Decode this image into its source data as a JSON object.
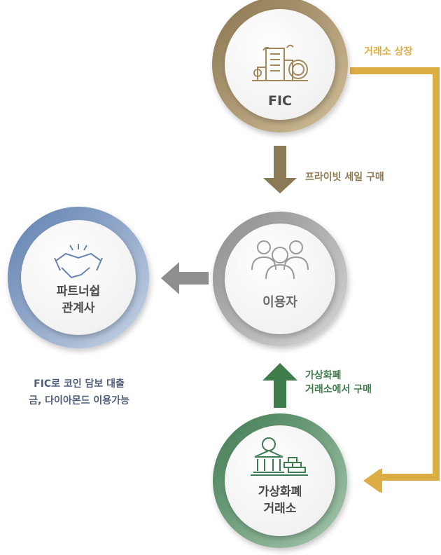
{
  "nodes": {
    "fic": {
      "label": "FIC",
      "ring_from": "#8a7550",
      "ring_to": "#d2c09a"
    },
    "user": {
      "label": "이용자",
      "ring_from": "#8c8c8c",
      "ring_to": "#d7d7d7"
    },
    "partner": {
      "line1": "파트너쉽",
      "line2": "관계사",
      "ring_from": "#5f7fb0",
      "ring_to": "#c9d5e6"
    },
    "exchange": {
      "line1": "가상화폐",
      "line2": "거래소",
      "ring_from": "#3f7a52",
      "ring_to": "#a9c9b0"
    }
  },
  "edges": {
    "listing": {
      "label": "거래소 상장",
      "color": "#dcac45"
    },
    "private_sale": {
      "label": "프라이빗 세일 구매",
      "color": "#8c7a56"
    },
    "buy_on_exchange": {
      "line1": "가상화폐",
      "line2": "거래소에서 구매",
      "color": "#3f7d4c"
    },
    "to_partner": {
      "color": "#8e8e8e"
    }
  },
  "partner_note": {
    "line1": "FIC로 코인 담보 대출",
    "line2": "금, 다이아몬드 이용가능"
  },
  "colors": {
    "text_main": "#4a4a4a",
    "note_text": "#4e5e78",
    "icon_gold": "#a08a5c",
    "icon_gray": "#9a9a9a",
    "icon_blue": "#6b84b0",
    "icon_green": "#3f7a52"
  }
}
